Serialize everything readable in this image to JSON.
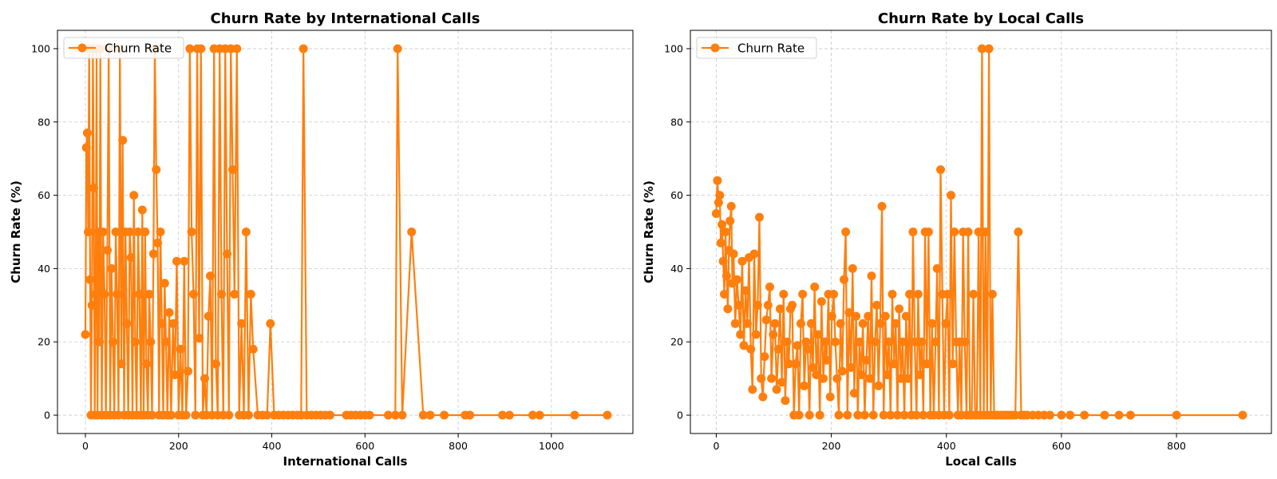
{
  "chart_data": [
    {
      "type": "line",
      "title": "Churn Rate by International Calls",
      "xlabel": "International Calls",
      "ylabel": "Churn Rate (%)",
      "xlim": [
        -60,
        1175
      ],
      "ylim": [
        -5,
        105
      ],
      "xticks": [
        0,
        200,
        400,
        600,
        800,
        1000
      ],
      "yticks": [
        0,
        20,
        40,
        60,
        80,
        100
      ],
      "grid": true,
      "legend_position": "top-left",
      "color": "#ff7f0e",
      "series": [
        {
          "name": "Churn Rate",
          "x": [
            0,
            2,
            4,
            6,
            8,
            10,
            12,
            14,
            16,
            18,
            20,
            22,
            24,
            26,
            28,
            30,
            32,
            35,
            38,
            41,
            44,
            47,
            50,
            53,
            56,
            59,
            62,
            65,
            68,
            71,
            74,
            77,
            80,
            83,
            86,
            89,
            92,
            95,
            98,
            101,
            104,
            107,
            110,
            113,
            116,
            119,
            122,
            125,
            128,
            131,
            134,
            137,
            140,
            143,
            146,
            149,
            152,
            155,
            158,
            161,
            164,
            167,
            170,
            173,
            176,
            180,
            184,
            188,
            192,
            196,
            200,
            204,
            208,
            212,
            216,
            220,
            224,
            228,
            232,
            236,
            240,
            244,
            248,
            252,
            256,
            260,
            264,
            268,
            272,
            276,
            280,
            284,
            288,
            292,
            296,
            300,
            304,
            308,
            312,
            316,
            320,
            325,
            330,
            335,
            340,
            345,
            350,
            355,
            360,
            370,
            380,
            390,
            397,
            405,
            415,
            425,
            435,
            445,
            455,
            463,
            468,
            475,
            485,
            495,
            505,
            515,
            525,
            560,
            570,
            580,
            590,
            600,
            610,
            650,
            665,
            670,
            680,
            700,
            725,
            740,
            770,
            815,
            825,
            895,
            910,
            960,
            975,
            1050,
            1120
          ],
          "y": [
            22,
            73,
            77,
            50,
            100,
            37,
            0,
            30,
            100,
            62,
            0,
            33,
            100,
            0,
            50,
            20,
            100,
            0,
            50,
            33,
            0,
            45,
            100,
            0,
            40,
            20,
            0,
            50,
            33,
            0,
            100,
            14,
            75,
            0,
            50,
            25,
            0,
            50,
            43,
            0,
            60,
            20,
            0,
            50,
            33,
            0,
            56,
            0,
            50,
            14,
            0,
            33,
            20,
            0,
            44,
            100,
            67,
            47,
            0,
            50,
            25,
            0,
            36,
            20,
            0,
            28,
            0,
            25,
            11,
            42,
            0,
            18,
            0,
            42,
            0,
            12,
            100,
            50,
            33,
            0,
            100,
            21,
            100,
            0,
            10,
            0,
            27,
            38,
            0,
            100,
            14,
            0,
            100,
            33,
            0,
            100,
            44,
            0,
            100,
            67,
            33,
            100,
            0,
            25,
            0,
            50,
            0,
            33,
            18,
            0,
            0,
            0,
            25,
            0,
            0,
            0,
            0,
            0,
            0,
            0,
            100,
            0,
            0,
            0,
            0,
            0,
            0,
            0,
            0,
            0,
            0,
            0,
            0,
            0,
            0,
            100,
            0,
            50,
            0,
            0,
            0,
            0,
            0,
            0,
            0,
            0,
            0,
            0,
            0
          ]
        }
      ]
    },
    {
      "type": "line",
      "title": "Churn Rate by Local Calls",
      "xlabel": "Local Calls",
      "ylabel": "Churn Rate (%)",
      "xlim": [
        -45,
        965
      ],
      "ylim": [
        -5,
        105
      ],
      "xticks": [
        0,
        200,
        400,
        600,
        800
      ],
      "yticks": [
        0,
        20,
        40,
        60,
        80,
        100
      ],
      "grid": true,
      "legend_position": "top-left",
      "color": "#ff7f0e",
      "series": [
        {
          "name": "Churn Rate",
          "x": [
            0,
            2,
            4,
            6,
            8,
            10,
            12,
            14,
            16,
            18,
            20,
            22,
            24,
            26,
            28,
            30,
            33,
            36,
            39,
            42,
            45,
            48,
            51,
            54,
            57,
            60,
            63,
            66,
            69,
            72,
            75,
            78,
            81,
            84,
            87,
            90,
            93,
            96,
            99,
            102,
            105,
            108,
            111,
            114,
            117,
            120,
            123,
            126,
            129,
            132,
            135,
            138,
            141,
            144,
            147,
            150,
            153,
            156,
            159,
            162,
            165,
            168,
            171,
            174,
            177,
            180,
            183,
            186,
            189,
            192,
            195,
            198,
            201,
            204,
            207,
            210,
            213,
            216,
            219,
            222,
            225,
            228,
            231,
            234,
            237,
            240,
            243,
            246,
            249,
            252,
            255,
            258,
            261,
            264,
            267,
            270,
            273,
            276,
            279,
            282,
            285,
            288,
            291,
            294,
            297,
            300,
            303,
            306,
            309,
            312,
            315,
            318,
            321,
            324,
            327,
            330,
            333,
            336,
            339,
            342,
            345,
            348,
            351,
            354,
            357,
            360,
            363,
            366,
            369,
            372,
            375,
            378,
            381,
            384,
            387,
            390,
            393,
            396,
            399,
            402,
            405,
            408,
            411,
            414,
            417,
            420,
            423,
            426,
            429,
            432,
            435,
            438,
            441,
            444,
            447,
            450,
            453,
            456,
            459,
            462,
            465,
            468,
            471,
            474,
            477,
            480,
            483,
            486,
            490,
            495,
            500,
            505,
            510,
            515,
            520,
            525,
            530,
            535,
            540,
            550,
            560,
            570,
            580,
            600,
            615,
            640,
            675,
            700,
            720,
            800,
            915
          ],
          "y": [
            55,
            64,
            58,
            60,
            47,
            52,
            42,
            33,
            50,
            38,
            29,
            45,
            53,
            57,
            36,
            44,
            25,
            37,
            30,
            22,
            42,
            19,
            34,
            25,
            43,
            18,
            7,
            44,
            22,
            30,
            54,
            10,
            5,
            16,
            26,
            30,
            35,
            10,
            22,
            25,
            7,
            18,
            29,
            9,
            33,
            4,
            20,
            14,
            29,
            30,
            0,
            14,
            19,
            0,
            25,
            33,
            8,
            20,
            18,
            0,
            25,
            13,
            35,
            11,
            22,
            0,
            31,
            10,
            20,
            15,
            33,
            5,
            27,
            33,
            20,
            10,
            0,
            25,
            12,
            37,
            50,
            0,
            28,
            13,
            40,
            6,
            27,
            0,
            20,
            11,
            25,
            0,
            15,
            27,
            10,
            38,
            0,
            20,
            30,
            8,
            25,
            57,
            0,
            27,
            11,
            20,
            0,
            33,
            14,
            25,
            0,
            29,
            10,
            20,
            0,
            27,
            10,
            33,
            0,
            50,
            20,
            0,
            33,
            11,
            20,
            0,
            50,
            14,
            50,
            0,
            25,
            0,
            20,
            40,
            0,
            67,
            33,
            0,
            25,
            33,
            0,
            60,
            14,
            50,
            20,
            0,
            20,
            0,
            50,
            20,
            0,
            50,
            0,
            0,
            33,
            0,
            0,
            50,
            0,
            100,
            0,
            50,
            0,
            100,
            0,
            33,
            0,
            0,
            0,
            0,
            0,
            0,
            0,
            0,
            0,
            50,
            0,
            0,
            0,
            0,
            0,
            0,
            0,
            0,
            0,
            0,
            0,
            0,
            0,
            0,
            0
          ]
        }
      ]
    }
  ]
}
